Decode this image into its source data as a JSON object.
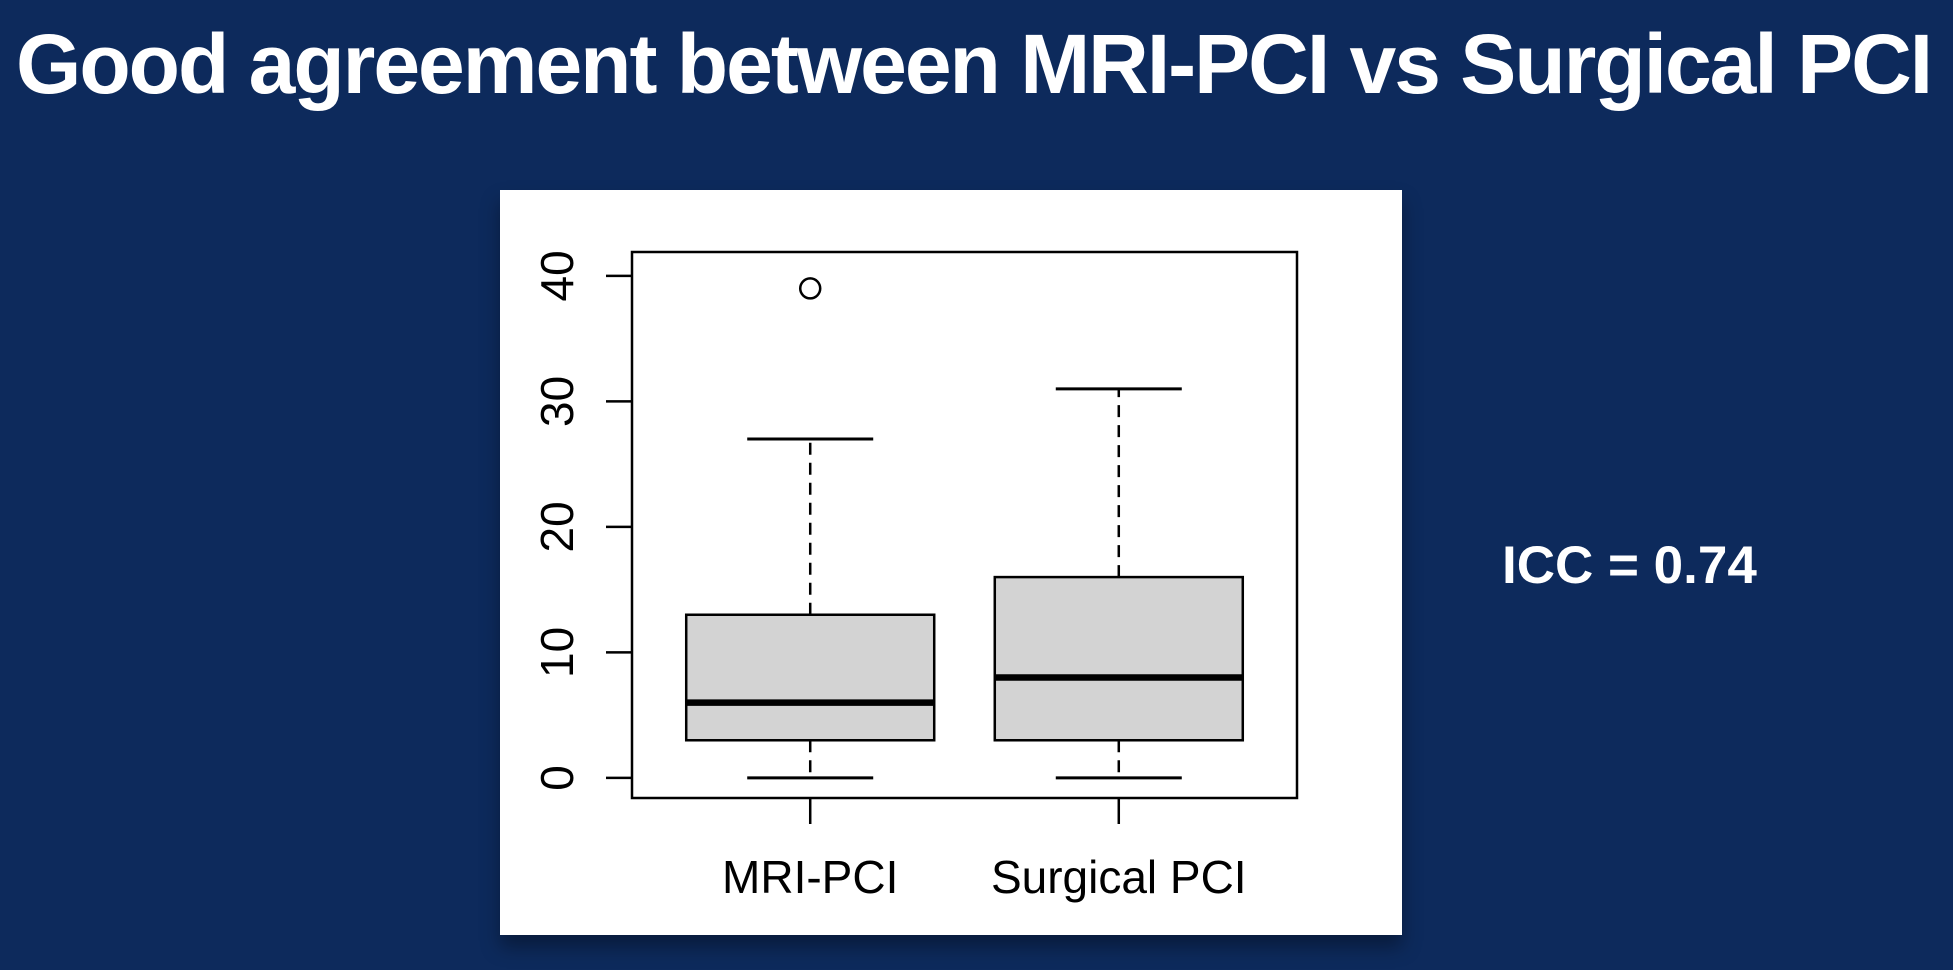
{
  "slide": {
    "title": "Good agreement between MRI-PCI vs Surgical PCI",
    "annotation": "ICC = 0.74"
  },
  "colors": {
    "background": "#0d2a5c",
    "title_text": "#ffffff",
    "annotation_text": "#ffffff",
    "panel_background": "#ffffff",
    "plot_line": "#000000",
    "box_fill": "#d3d3d3"
  },
  "chart_data": {
    "type": "boxplot",
    "title": "",
    "xlabel": "",
    "ylabel": "",
    "categories": [
      "MRI-PCI",
      "Surgical PCI"
    ],
    "yticks": [
      0,
      10,
      20,
      30,
      40
    ],
    "ylim": [
      -1.6,
      41.9
    ],
    "grid": false,
    "legend": "none",
    "series": [
      {
        "name": "MRI-PCI",
        "whisker_low": 0,
        "q1": 3,
        "median": 6,
        "q3": 13,
        "whisker_high": 27,
        "outliers": [
          39
        ]
      },
      {
        "name": "Surgical PCI",
        "whisker_low": 0,
        "q1": 3,
        "median": 8,
        "q3": 16,
        "whisker_high": 31,
        "outliers": []
      }
    ]
  }
}
